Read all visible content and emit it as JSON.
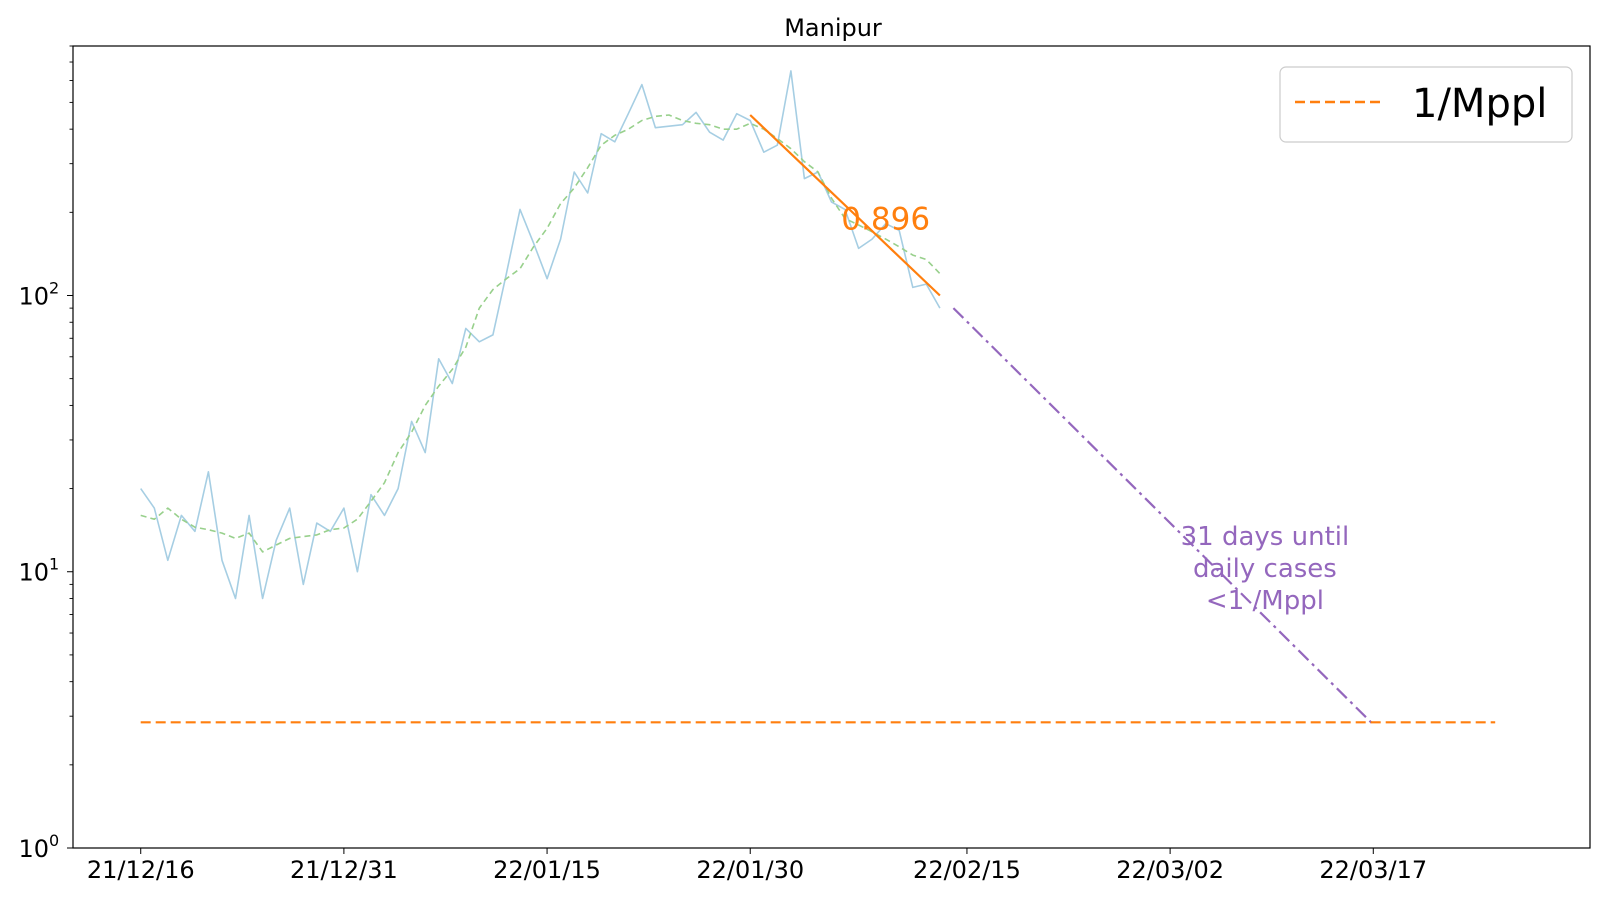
{
  "chart_data": {
    "type": "line",
    "title": "Manipur",
    "xlabel": "",
    "ylabel": "",
    "y_scale": "log",
    "ylim": [
      1,
      800
    ],
    "xlim": [
      "2021-12-11",
      "2022-04-02"
    ],
    "x_ticks": [
      "21/12/16",
      "21/12/31",
      "22/01/15",
      "22/01/30",
      "22/02/15",
      "22/03/02",
      "22/03/17"
    ],
    "x_tick_dates": [
      "2021-12-16",
      "2021-12-31",
      "2022-01-15",
      "2022-01-30",
      "2022-02-15",
      "2022-03-02",
      "2022-03-17"
    ],
    "y_ticks": [
      {
        "value": 1,
        "base": "10",
        "exp": "0"
      },
      {
        "value": 10,
        "base": "10",
        "exp": "1"
      },
      {
        "value": 100,
        "base": "10",
        "exp": "2"
      }
    ],
    "grid": false,
    "legend": {
      "position": "top-right",
      "entries": [
        {
          "label": "1/Mppl",
          "color": "#ff7f0e",
          "style": "dashed"
        }
      ]
    },
    "series": [
      {
        "style": "solid",
        "color": "#a6cee3",
        "points": [
          [
            "2021-12-16",
            20
          ],
          [
            "2021-12-17",
            17
          ],
          [
            "2021-12-18",
            11
          ],
          [
            "2021-12-19",
            16
          ],
          [
            "2021-12-20",
            14
          ],
          [
            "2021-12-21",
            23
          ],
          [
            "2021-12-22",
            11
          ],
          [
            "2021-12-23",
            8
          ],
          [
            "2021-12-24",
            16
          ],
          [
            "2021-12-25",
            8
          ],
          [
            "2021-12-26",
            13
          ],
          [
            "2021-12-27",
            17
          ],
          [
            "2021-12-28",
            9
          ],
          [
            "2021-12-29",
            15
          ],
          [
            "2021-12-30",
            14
          ],
          [
            "2021-12-31",
            17
          ],
          [
            "2022-01-01",
            10
          ],
          [
            "2022-01-02",
            19
          ],
          [
            "2022-01-03",
            16
          ],
          [
            "2022-01-04",
            20
          ],
          [
            "2022-01-05",
            35
          ],
          [
            "2022-01-06",
            27
          ],
          [
            "2022-01-07",
            59
          ],
          [
            "2022-01-08",
            48
          ],
          [
            "2022-01-09",
            76
          ],
          [
            "2022-01-10",
            68
          ],
          [
            "2022-01-11",
            72
          ],
          [
            "2022-01-12",
            120
          ],
          [
            "2022-01-13",
            205
          ],
          [
            "2022-01-14",
            155
          ],
          [
            "2022-01-15",
            115
          ],
          [
            "2022-01-16",
            160
          ],
          [
            "2022-01-17",
            280
          ],
          [
            "2022-01-18",
            235
          ],
          [
            "2022-01-19",
            385
          ],
          [
            "2022-01-20",
            360
          ],
          [
            "2022-01-21",
            455
          ],
          [
            "2022-01-22",
            580
          ],
          [
            "2022-01-23",
            405
          ],
          [
            "2022-01-24",
            410
          ],
          [
            "2022-01-25",
            415
          ],
          [
            "2022-01-26",
            460
          ],
          [
            "2022-01-27",
            390
          ],
          [
            "2022-01-28",
            365
          ],
          [
            "2022-01-29",
            455
          ],
          [
            "2022-01-30",
            430
          ],
          [
            "2022-01-31",
            330
          ],
          [
            "2022-02-01",
            350
          ],
          [
            "2022-02-02",
            650
          ],
          [
            "2022-02-03",
            265
          ],
          [
            "2022-02-04",
            280
          ],
          [
            "2022-02-05",
            218
          ],
          [
            "2022-02-06",
            205
          ],
          [
            "2022-02-07",
            148
          ],
          [
            "2022-02-08",
            160
          ],
          [
            "2022-02-09",
            182
          ],
          [
            "2022-02-10",
            172
          ],
          [
            "2022-02-11",
            107
          ],
          [
            "2022-02-12",
            110
          ],
          [
            "2022-02-13",
            90
          ]
        ]
      },
      {
        "style": "dashed",
        "color": "#98d08c",
        "points": [
          [
            "2021-12-16",
            16
          ],
          [
            "2021-12-17",
            15.5
          ],
          [
            "2021-12-18",
            17
          ],
          [
            "2021-12-19",
            15.5
          ],
          [
            "2021-12-20",
            14.5
          ],
          [
            "2021-12-21",
            14.2
          ],
          [
            "2021-12-22",
            13.8
          ],
          [
            "2021-12-23",
            13.2
          ],
          [
            "2021-12-24",
            13.8
          ],
          [
            "2021-12-25",
            11.8
          ],
          [
            "2021-12-26",
            12.5
          ],
          [
            "2021-12-27",
            13.2
          ],
          [
            "2021-12-28",
            13.4
          ],
          [
            "2021-12-29",
            13.6
          ],
          [
            "2021-12-30",
            14.2
          ],
          [
            "2021-12-31",
            14.4
          ],
          [
            "2022-01-01",
            15.5
          ],
          [
            "2022-01-02",
            18
          ],
          [
            "2022-01-03",
            21
          ],
          [
            "2022-01-04",
            27
          ],
          [
            "2022-01-05",
            32
          ],
          [
            "2022-01-06",
            40
          ],
          [
            "2022-01-07",
            47
          ],
          [
            "2022-01-08",
            54
          ],
          [
            "2022-01-09",
            65
          ],
          [
            "2022-01-10",
            90
          ],
          [
            "2022-01-11",
            105
          ],
          [
            "2022-01-12",
            115
          ],
          [
            "2022-01-13",
            125
          ],
          [
            "2022-01-14",
            150
          ],
          [
            "2022-01-15",
            175
          ],
          [
            "2022-01-16",
            215
          ],
          [
            "2022-01-17",
            245
          ],
          [
            "2022-01-18",
            290
          ],
          [
            "2022-01-19",
            350
          ],
          [
            "2022-01-20",
            380
          ],
          [
            "2022-01-21",
            400
          ],
          [
            "2022-01-22",
            430
          ],
          [
            "2022-01-23",
            445
          ],
          [
            "2022-01-24",
            450
          ],
          [
            "2022-01-25",
            430
          ],
          [
            "2022-01-26",
            420
          ],
          [
            "2022-01-27",
            415
          ],
          [
            "2022-01-28",
            400
          ],
          [
            "2022-01-29",
            400
          ],
          [
            "2022-01-30",
            420
          ],
          [
            "2022-01-31",
            400
          ],
          [
            "2022-02-01",
            370
          ],
          [
            "2022-02-02",
            340
          ],
          [
            "2022-02-03",
            305
          ],
          [
            "2022-02-04",
            280
          ],
          [
            "2022-02-05",
            225
          ],
          [
            "2022-02-06",
            190
          ],
          [
            "2022-02-07",
            180
          ],
          [
            "2022-02-08",
            170
          ],
          [
            "2022-02-09",
            160
          ],
          [
            "2022-02-10",
            150
          ],
          [
            "2022-02-11",
            140
          ],
          [
            "2022-02-12",
            135
          ],
          [
            "2022-02-13",
            120
          ]
        ]
      },
      {
        "style": "solid",
        "color": "#ff7f0e",
        "points": [
          [
            "2022-01-30",
            450
          ],
          [
            "2022-02-13",
            100
          ]
        ]
      },
      {
        "style": "dashdot",
        "color": "#9467bd",
        "points": [
          [
            "2022-02-14",
            90
          ],
          [
            "2022-03-17",
            2.8
          ]
        ]
      },
      {
        "name": "1/Mppl",
        "style": "dashed",
        "color": "#ff7f0e",
        "points": [
          [
            "2021-12-16",
            2.85
          ],
          [
            "2022-03-26",
            2.85
          ]
        ]
      }
    ],
    "annotations": [
      {
        "text": "0.896",
        "x": "2022-02-09",
        "y": 190,
        "color": "#ff7f0e"
      },
      {
        "lines": [
          "31 days until",
          "daily cases",
          "<1 /Mppl"
        ],
        "x": "2022-03-09",
        "y": 10.3,
        "color": "#9467bd"
      }
    ]
  }
}
